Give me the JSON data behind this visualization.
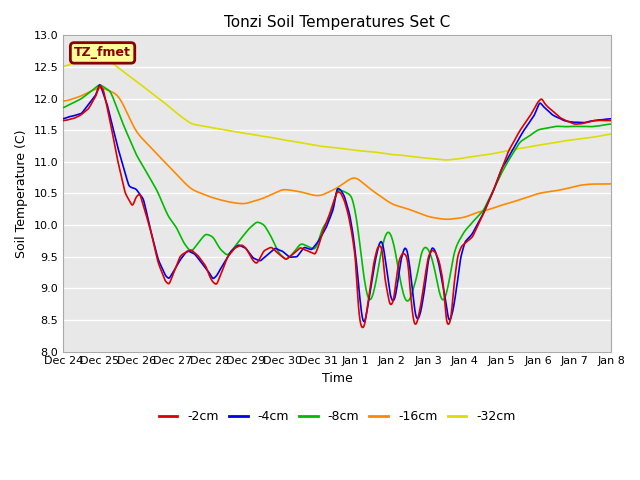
{
  "title": "Tonzi Soil Temperatures Set C",
  "xlabel": "Time",
  "ylabel": "Soil Temperature (C)",
  "ylim": [
    8.0,
    13.0
  ],
  "yticks": [
    8.0,
    8.5,
    9.0,
    9.5,
    10.0,
    10.5,
    11.0,
    11.5,
    12.0,
    12.5,
    13.0
  ],
  "xtick_labels": [
    "Dec 24",
    "Dec 25",
    "Dec 26",
    "Dec 27",
    "Dec 28",
    "Dec 29",
    "Dec 30",
    "Dec 31",
    "Jan 1",
    "Jan 2",
    "Jan 3",
    "Jan 4",
    "Jan 5",
    "Jan 6",
    "Jan 7",
    "Jan 8"
  ],
  "colors": {
    "-2cm": "#dd0000",
    "-4cm": "#0000ee",
    "-8cm": "#00bb00",
    "-16cm": "#ff8800",
    "-32cm": "#dddd00"
  },
  "legend_label": "TZ_fmet",
  "legend_box_facecolor": "#ffff99",
  "legend_box_edgecolor": "#880000",
  "background_color": "#e8e8e8",
  "grid_color": "#ffffff",
  "line_width": 1.2,
  "title_fontsize": 11,
  "tick_fontsize": 8,
  "label_fontsize": 9
}
